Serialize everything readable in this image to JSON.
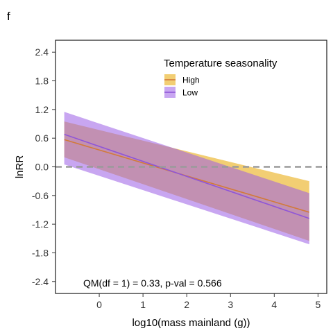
{
  "chart_data": {
    "type": "line",
    "panel_label": "f",
    "xlabel": "log10(mass mainland (g))",
    "ylabel": "lnRR",
    "xlim": [
      -1.0,
      5.2
    ],
    "ylim": [
      -2.65,
      2.65
    ],
    "x_ticks": [
      0,
      1,
      2,
      3,
      4,
      5
    ],
    "y_ticks": [
      2.4,
      1.8,
      1.2,
      0.6,
      0.0,
      -0.6,
      -1.2,
      -1.8,
      -2.4
    ],
    "y_tick_labels": [
      "2.4",
      "1.8",
      "1.2",
      "0.6",
      "0.0",
      "-0.6",
      "-1.2",
      "-1.8",
      "-2.4"
    ],
    "reference_line_y": 0.0,
    "grid": false,
    "legend": {
      "title": "Temperature seasonality",
      "placement": "top-right"
    },
    "annotation": "QM(df = 1) = 0.33, p-val = 0.566",
    "series": [
      {
        "name": "High",
        "color": "#E8A500",
        "x": [
          -0.8,
          4.8
        ],
        "y": [
          0.57,
          -0.95
        ],
        "ci_upper": [
          0.95,
          -0.3
        ],
        "ci_lower": [
          0.2,
          -1.55
        ]
      },
      {
        "name": "Low",
        "color": "#9B5DE5",
        "x": [
          -0.8,
          4.8
        ],
        "y": [
          0.68,
          -1.08
        ],
        "ci_upper": [
          1.15,
          -0.55
        ],
        "ci_lower": [
          0.05,
          -1.62
        ]
      }
    ]
  }
}
